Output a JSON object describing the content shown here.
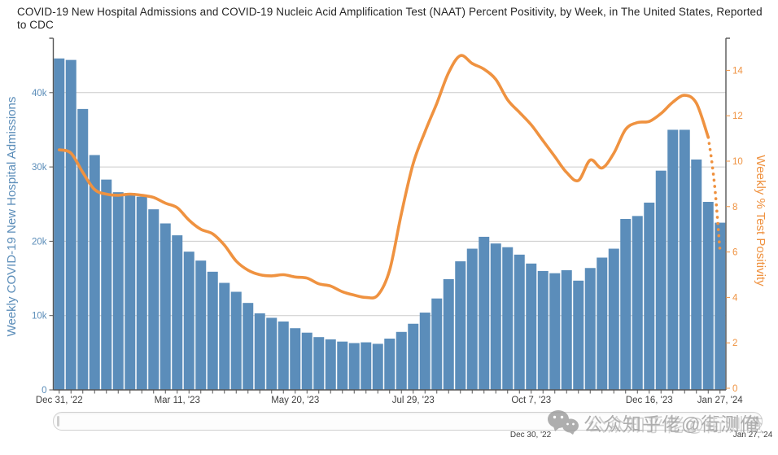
{
  "title": "COVID-19 New Hospital Admissions and COVID-19 Nucleic Acid Amplification Test (NAAT) Percent Positivity, by Week, in The United States, Reported to CDC",
  "colors": {
    "bar": "#5b8dba",
    "line": "#ef9240",
    "left_axis_text": "#5b8db9",
    "right_axis_text": "#ef9240",
    "grid": "#cbcbcb",
    "axis_line": "#555555",
    "x_label": "#3f3f3f",
    "watermark": "#9b9b9b"
  },
  "chart_data": {
    "type": "bar+line",
    "title": "COVID-19 New Hospital Admissions and COVID-19 NAAT Percent Positivity, by Week, in The United States, Reported to CDC",
    "weeks": 57,
    "x_tick_labels": [
      {
        "index": 1,
        "label": "Dec 31, '22"
      },
      {
        "index": 11,
        "label": "Mar 11, '23"
      },
      {
        "index": 21,
        "label": "May 20, '23"
      },
      {
        "index": 31,
        "label": "Jul 29, '23"
      },
      {
        "index": 41,
        "label": "Oct 7, '23"
      },
      {
        "index": 51,
        "label": "Dec 16, '23"
      },
      {
        "index": 57,
        "label": "Jan 27, '24"
      }
    ],
    "left_axis": {
      "title": "Weekly COVID-19 New Hospital Admissions",
      "tick_labels": [
        "0",
        "10k",
        "20k",
        "30k",
        "40k"
      ],
      "tick_values": [
        0,
        10000,
        20000,
        30000,
        40000
      ],
      "range": [
        0,
        47300
      ]
    },
    "right_axis": {
      "title": "Weekly % Test Positivity",
      "tick_labels": [
        "0",
        "2",
        "4",
        "6",
        "8",
        "10",
        "12",
        "14"
      ],
      "tick_values": [
        0,
        2,
        4,
        6,
        8,
        10,
        12,
        14
      ],
      "range": [
        0,
        15.4
      ]
    },
    "grid": "horizontal-only",
    "legend": "none",
    "series": [
      {
        "name": "Weekly COVID-19 New Hospital Admissions",
        "type": "bar",
        "values": [
          44600,
          44400,
          37800,
          31600,
          28300,
          26600,
          26500,
          26000,
          24300,
          22400,
          20800,
          18600,
          17400,
          15900,
          14400,
          13200,
          11700,
          10300,
          9700,
          9200,
          8300,
          7700,
          7100,
          6800,
          6500,
          6300,
          6400,
          6200,
          6900,
          7800,
          8900,
          10400,
          12300,
          14900,
          17300,
          19000,
          20600,
          19700,
          19200,
          18200,
          17000,
          16000,
          15700,
          16100,
          14700,
          16400,
          17800,
          19000,
          23000,
          23400,
          25200,
          29500,
          35000,
          35000,
          31000,
          25300,
          22500
        ]
      },
      {
        "name": "Weekly % Test Positivity",
        "type": "line",
        "solid_values": [
          10.5,
          10.35,
          9.5,
          8.75,
          8.55,
          8.5,
          8.55,
          8.5,
          8.4,
          8.15,
          7.95,
          7.4,
          7.0,
          6.8,
          6.3,
          5.6,
          5.2,
          5.0,
          4.95,
          5.0,
          4.9,
          4.85,
          4.6,
          4.5,
          4.25,
          4.1,
          4.0,
          4.1,
          5.2,
          7.7,
          9.9,
          11.3,
          12.55,
          13.9,
          14.65,
          14.3,
          14.05,
          13.6,
          12.7,
          12.15,
          11.6,
          10.9,
          10.2,
          9.5,
          9.15,
          10.05,
          9.7,
          10.35,
          11.4,
          11.7,
          11.75,
          12.1,
          12.6,
          12.9,
          12.55,
          11.05
        ],
        "dotted_tail": [
          {
            "x": 56.0,
            "y": 11.05
          },
          {
            "x": 56.3,
            "y": 10.0
          },
          {
            "x": 56.55,
            "y": 8.9
          },
          {
            "x": 56.75,
            "y": 7.7
          },
          {
            "x": 56.9,
            "y": 6.7
          },
          {
            "x": 57.0,
            "y": 6.05
          }
        ]
      }
    ]
  },
  "range_slider": {
    "start_label": "Dec 30, '22",
    "end_label": "Jan 27, '24"
  },
  "watermark": {
    "icon": "wechat-icon",
    "text": "公众知乎佬@街测俺"
  }
}
